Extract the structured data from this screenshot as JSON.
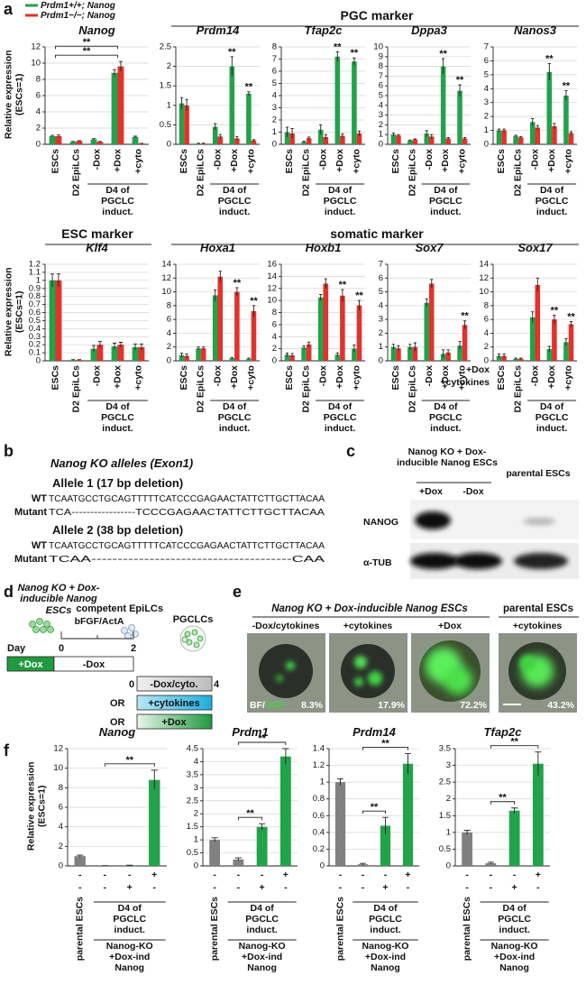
{
  "panel_letters": {
    "a": "a",
    "b": "b",
    "c": "c",
    "d": "d",
    "e": "e",
    "f": "f"
  },
  "legend": [
    {
      "name": "Prdm1+/+; Nanog",
      "color": "#22a34a"
    },
    {
      "name": "Prdm1−/−; Nanog",
      "color": "#e3322b"
    }
  ],
  "headers": {
    "pgc": "PGC marker",
    "esc": "ESC marker",
    "somatic": "somatic marker"
  },
  "chart_data": [
    {
      "type": "bar",
      "title": "Nanog",
      "ylabel": "Relative expression (ESCs=1)",
      "grid": true,
      "categories": [
        "ESCs",
        "D2 EpiLCs",
        "-Dox",
        "+Dox",
        "+cyto"
      ],
      "group_label": "D4 of PGCLC induct.",
      "ylim": [
        0,
        12
      ],
      "yticks": [
        0,
        2,
        4,
        6,
        8,
        10,
        12
      ],
      "series": [
        {
          "color": "#22a34a",
          "values": [
            1.0,
            0.3,
            0.6,
            8.8,
            0.9
          ],
          "errors": [
            0.1,
            0.05,
            0.1,
            0.4,
            0.1
          ]
        },
        {
          "color": "#e3322b",
          "values": [
            1.0,
            0.4,
            0.3,
            9.6,
            0.1
          ],
          "errors": [
            0.15,
            0.05,
            0.05,
            0.6,
            0.02
          ]
        }
      ],
      "brackets": [
        {
          "from": 0,
          "to": 3,
          "text": "**"
        },
        {
          "from": 0,
          "to": 3,
          "text": "**"
        }
      ]
    },
    {
      "type": "bar",
      "title": "Prdm14",
      "grid": true,
      "categories": [
        "ESCs",
        "D2 EpiLCs",
        "-Dox",
        "+Dox",
        "+cyto"
      ],
      "group_label": "D4 of PGCLC induct.",
      "ylim": [
        0,
        2.5
      ],
      "yticks": [
        0,
        0.5,
        1,
        1.5,
        2,
        2.5
      ],
      "series": [
        {
          "color": "#22a34a",
          "values": [
            1.05,
            0.02,
            0.45,
            2.0,
            1.3
          ],
          "errors": [
            0.15,
            0.01,
            0.08,
            0.25,
            0.05
          ]
        },
        {
          "color": "#e3322b",
          "values": [
            1.0,
            0.02,
            0.2,
            0.15,
            0.1
          ],
          "errors": [
            0.15,
            0.01,
            0.05,
            0.05,
            0.02
          ]
        }
      ],
      "annotations": [
        {
          "text": "**",
          "series": 0,
          "category": 3
        },
        {
          "text": "**",
          "series": 0,
          "category": 4
        }
      ]
    },
    {
      "type": "bar",
      "title": "Tfap2c",
      "grid": true,
      "categories": [
        "ESCs",
        "D2 EpiLCs",
        "-Dox",
        "+Dox",
        "+cyto"
      ],
      "group_label": "D4 of PGCLC induct.",
      "ylim": [
        0,
        8
      ],
      "yticks": [
        0,
        1,
        2,
        3,
        4,
        5,
        6,
        7,
        8
      ],
      "series": [
        {
          "color": "#22a34a",
          "values": [
            1.0,
            0.2,
            1.2,
            7.2,
            6.8
          ],
          "errors": [
            0.4,
            0.05,
            0.4,
            0.4,
            0.3
          ]
        },
        {
          "color": "#e3322b",
          "values": [
            0.9,
            0.5,
            0.6,
            0.7,
            0.9
          ],
          "errors": [
            0.4,
            0.1,
            0.2,
            0.15,
            0.2
          ]
        }
      ],
      "annotations": [
        {
          "text": "**",
          "series": 0,
          "category": 3
        },
        {
          "text": "**",
          "series": 0,
          "category": 4
        }
      ]
    },
    {
      "type": "bar",
      "title": "Dppa3",
      "grid": true,
      "categories": [
        "ESCs",
        "D2 EpiLCs",
        "-Dox",
        "+Dox",
        "+cyto"
      ],
      "group_label": "D4 of PGCLC induct.",
      "ylim": [
        0,
        10
      ],
      "yticks": [
        0,
        1,
        2,
        3,
        4,
        5,
        6,
        7,
        8,
        9,
        10
      ],
      "series": [
        {
          "color": "#22a34a",
          "values": [
            1.0,
            0.4,
            1.1,
            8.0,
            5.5
          ],
          "errors": [
            0.15,
            0.05,
            0.3,
            0.8,
            0.6
          ]
        },
        {
          "color": "#e3322b",
          "values": [
            0.9,
            0.5,
            0.8,
            0.6,
            0.6
          ],
          "errors": [
            0.1,
            0.05,
            0.2,
            0.1,
            0.1
          ]
        }
      ],
      "annotations": [
        {
          "text": "**",
          "series": 0,
          "category": 3
        },
        {
          "text": "**",
          "series": 0,
          "category": 4
        }
      ]
    },
    {
      "type": "bar",
      "title": "Nanos3",
      "grid": true,
      "categories": [
        "ESCs",
        "D2 EpiLCs",
        "-Dox",
        "+Dox",
        "+cyto"
      ],
      "group_label": "D4 of PGCLC induct.",
      "ylim": [
        0,
        7
      ],
      "yticks": [
        0,
        1,
        2,
        3,
        4,
        5,
        6,
        7
      ],
      "series": [
        {
          "color": "#22a34a",
          "values": [
            1.0,
            0.6,
            1.6,
            5.2,
            3.5
          ],
          "errors": [
            0.1,
            0.05,
            0.25,
            0.6,
            0.35
          ]
        },
        {
          "color": "#e3322b",
          "values": [
            1.0,
            0.5,
            1.2,
            1.3,
            0.8
          ],
          "errors": [
            0.1,
            0.05,
            0.15,
            0.2,
            0.1
          ]
        }
      ],
      "annotations": [
        {
          "text": "**",
          "series": 0,
          "category": 3
        },
        {
          "text": "**",
          "series": 0,
          "category": 4
        }
      ]
    },
    {
      "type": "bar",
      "title": "Klf4",
      "ylabel": "Relative expression (ESCs=1)",
      "grid": true,
      "categories": [
        "ESCs",
        "D2 EpiLCs",
        "-Dox",
        "+Dox",
        "+cyto"
      ],
      "group_label": "D4 of PGCLC induct.",
      "ylim": [
        0,
        1.2
      ],
      "yticks": [
        0,
        0.1,
        0.2,
        0.3,
        0.4,
        0.5,
        0.6,
        0.7,
        0.8,
        0.9,
        1,
        1.1,
        1.2
      ],
      "series": [
        {
          "color": "#22a34a",
          "values": [
            1.0,
            0.01,
            0.15,
            0.18,
            0.17
          ],
          "errors": [
            0.08,
            0.005,
            0.04,
            0.04,
            0.04
          ]
        },
        {
          "color": "#e3322b",
          "values": [
            1.0,
            0.01,
            0.2,
            0.2,
            0.17
          ],
          "errors": [
            0.08,
            0.005,
            0.04,
            0.03,
            0.04
          ]
        }
      ]
    },
    {
      "type": "bar",
      "title": "Hoxa1",
      "grid": true,
      "categories": [
        "ESCs",
        "D2 EpiLCs",
        "-Dox",
        "+Dox",
        "+cyto"
      ],
      "group_label": "D4 of PGCLC induct.",
      "ylim": [
        0,
        14
      ],
      "yticks": [
        0,
        2,
        4,
        6,
        8,
        10,
        12,
        14
      ],
      "series": [
        {
          "color": "#22a34a",
          "values": [
            0.8,
            1.8,
            9.5,
            0.4,
            0.3
          ],
          "errors": [
            0.3,
            0.2,
            0.8,
            0.1,
            0.1
          ]
        },
        {
          "color": "#e3322b",
          "values": [
            0.7,
            1.8,
            12.2,
            10.0,
            7.2
          ],
          "errors": [
            0.3,
            0.2,
            0.8,
            0.6,
            0.8
          ]
        }
      ],
      "annotations": [
        {
          "text": "**",
          "series": 1,
          "category": 3
        },
        {
          "text": "**",
          "series": 1,
          "category": 4
        }
      ]
    },
    {
      "type": "bar",
      "title": "Hoxb1",
      "grid": true,
      "categories": [
        "ESCs",
        "D2 EpiLCs",
        "-Dox",
        "+Dox",
        "+cyto"
      ],
      "group_label": "D4 of PGCLC induct.",
      "ylim": [
        0,
        16
      ],
      "yticks": [
        0,
        2,
        4,
        6,
        8,
        10,
        12,
        14,
        16
      ],
      "series": [
        {
          "color": "#22a34a",
          "values": [
            1.0,
            2.2,
            10.5,
            1.0,
            2.0
          ],
          "errors": [
            0.3,
            0.3,
            0.5,
            0.3,
            0.6
          ]
        },
        {
          "color": "#e3322b",
          "values": [
            0.9,
            2.7,
            12.8,
            10.8,
            9.2
          ],
          "errors": [
            0.3,
            0.4,
            0.8,
            1.0,
            0.8
          ]
        }
      ],
      "annotations": [
        {
          "text": "**",
          "series": 1,
          "category": 3
        },
        {
          "text": "**",
          "series": 1,
          "category": 4
        }
      ]
    },
    {
      "type": "bar",
      "title": "Sox7",
      "grid": true,
      "categories": [
        "ESCs",
        "D2 EpiLCs",
        "-Dox",
        "+Dox",
        "+cyto"
      ],
      "group_label": "D4 of PGCLC induct.",
      "ylim": [
        0,
        7
      ],
      "yticks": [
        0,
        1,
        2,
        3,
        4,
        5,
        6,
        7
      ],
      "series": [
        {
          "color": "#22a34a",
          "values": [
            1.0,
            1.0,
            4.2,
            0.5,
            1.1
          ],
          "errors": [
            0.2,
            0.2,
            0.3,
            0.3,
            0.3
          ]
        },
        {
          "color": "#e3322b",
          "values": [
            0.9,
            1.0,
            5.6,
            0.6,
            2.6
          ],
          "errors": [
            0.2,
            0.3,
            0.3,
            0.2,
            0.3
          ]
        }
      ],
      "annotations": [
        {
          "text": "**",
          "series": 1,
          "category": 4
        }
      ]
    },
    {
      "type": "bar",
      "title": "Sox17",
      "grid": true,
      "categories": [
        "ESCs",
        "D2 EpiLCs",
        "-Dox",
        "+Dox",
        "+cyto"
      ],
      "group_label": "D4 of PGCLC induct.",
      "ylim": [
        0,
        14
      ],
      "yticks": [
        0,
        2,
        4,
        6,
        8,
        10,
        12,
        14
      ],
      "series": [
        {
          "color": "#22a34a",
          "values": [
            0.7,
            0.3,
            6.3,
            1.7,
            2.7
          ],
          "errors": [
            0.3,
            0.1,
            0.8,
            0.4,
            0.5
          ]
        },
        {
          "color": "#e3322b",
          "values": [
            0.7,
            0.3,
            11.0,
            6.0,
            5.3
          ],
          "errors": [
            0.3,
            0.1,
            1.0,
            0.6,
            0.4
          ]
        }
      ],
      "annotations": [
        {
          "text": "**",
          "series": 1,
          "category": 3
        },
        {
          "text": "**",
          "series": 1,
          "category": 4
        }
      ]
    },
    {
      "type": "bar",
      "title": "Nanog",
      "ylabel": "Relative expression (ESCs=1)",
      "grid": true,
      "categories": [
        "parental ESCs",
        null,
        null,
        null
      ],
      "group_label": "D4 of PGCLC induct.",
      "subgroup_label": "Nanog-KO +Dox-ind Nanog",
      "ylim": [
        0,
        12
      ],
      "yticks": [
        0,
        2,
        4,
        6,
        8,
        10,
        12
      ],
      "values": [
        1.0,
        0.02,
        0.05,
        8.8
      ],
      "errors": [
        0.1,
        0.01,
        0.02,
        1.0
      ],
      "colors": [
        "#808080",
        "#808080",
        "#22a34a",
        "#22a34a"
      ],
      "conditions": [
        [
          "-",
          "-",
          "-",
          "+"
        ],
        [
          "-",
          "-",
          "+",
          "-"
        ]
      ],
      "brackets": [
        {
          "from": 1,
          "to": 3,
          "text": "**"
        }
      ]
    },
    {
      "type": "bar",
      "title": "Prdm1",
      "grid": true,
      "categories": [
        "parental ESCs",
        null,
        null,
        null
      ],
      "group_label": "D4 of PGCLC induct.",
      "subgroup_label": "Nanog-KO +Dox-ind Nanog",
      "ylim": [
        0,
        4.5
      ],
      "yticks": [
        0,
        0.5,
        1,
        1.5,
        2,
        2.5,
        3,
        3.5,
        4,
        4.5
      ],
      "values": [
        1.0,
        0.25,
        1.5,
        4.2
      ],
      "errors": [
        0.08,
        0.06,
        0.12,
        0.3
      ],
      "colors": [
        "#808080",
        "#808080",
        "#22a34a",
        "#22a34a"
      ],
      "conditions": [
        [
          "-",
          "-",
          "-",
          "+"
        ],
        [
          "-",
          "-",
          "+",
          "-"
        ]
      ],
      "brackets": [
        {
          "from": 1,
          "to": 2,
          "text": "**"
        },
        {
          "from": 1,
          "to": 3,
          "text": "**"
        }
      ]
    },
    {
      "type": "bar",
      "title": "Prdm14",
      "grid": true,
      "categories": [
        "parental ESCs",
        null,
        null,
        null
      ],
      "group_label": "D4 of PGCLC induct.",
      "subgroup_label": "Nanog-KO +Dox-ind Nanog",
      "ylim": [
        0,
        1.4
      ],
      "yticks": [
        0,
        0.2,
        0.4,
        0.6,
        0.8,
        1,
        1.2,
        1.4
      ],
      "values": [
        1.0,
        0.02,
        0.48,
        1.22
      ],
      "errors": [
        0.04,
        0.01,
        0.1,
        0.12
      ],
      "colors": [
        "#808080",
        "#808080",
        "#22a34a",
        "#22a34a"
      ],
      "conditions": [
        [
          "-",
          "-",
          "-",
          "+"
        ],
        [
          "-",
          "-",
          "+",
          "-"
        ]
      ],
      "brackets": [
        {
          "from": 1,
          "to": 2,
          "text": "**"
        },
        {
          "from": 1,
          "to": 3,
          "text": "**"
        }
      ]
    },
    {
      "type": "bar",
      "title": "Tfap2c",
      "grid": true,
      "categories": [
        "parental ESCs",
        null,
        null,
        null
      ],
      "group_label": "D4 of PGCLC induct.",
      "subgroup_label": "Nanog-KO +Dox-ind Nanog",
      "ylim": [
        0,
        3.5
      ],
      "yticks": [
        0,
        0.5,
        1,
        1.5,
        2,
        2.5,
        3,
        3.5
      ],
      "values": [
        1.0,
        0.08,
        1.65,
        3.05
      ],
      "errors": [
        0.06,
        0.03,
        0.08,
        0.35
      ],
      "colors": [
        "#808080",
        "#808080",
        "#22a34a",
        "#22a34a"
      ],
      "conditions": [
        [
          "-",
          "-",
          "-",
          "+"
        ],
        [
          "-",
          "-",
          "+",
          "-"
        ]
      ],
      "brackets": [
        {
          "from": 1,
          "to": 2,
          "text": "**"
        },
        {
          "from": 1,
          "to": 3,
          "text": "**"
        }
      ]
    }
  ],
  "f_conditions": [
    "+Dox",
    "+cytokines"
  ],
  "panel_b": {
    "title": "Nanog KO alleles (Exon1)",
    "alleles": [
      {
        "label": "Allele 1 (17 bp deletion)",
        "wt_label": "WT",
        "wt": "TCAATGCCTGCAGTTTTTCATCCCGAGAACTATTCTTGCTTACAA",
        "mut_label": "Mutant",
        "mut": "TCA-----------------TCCCGAGAACTATTCTTGCTTACAA"
      },
      {
        "label": "Allele 2 (38 bp deletion)",
        "wt_label": "WT",
        "wt": "TCAATGCCTGCAGTTTTTCATCCCGAGAACTATTCTTGCTTACAA",
        "mut_label": "Mutant",
        "mut": "TCAA--------------------------------------CAA"
      }
    ]
  },
  "panel_c": {
    "header": "Nanog KO + Dox-inducible Nanog ESCs",
    "parental": "parental ESCs",
    "lanes": [
      "+Dox",
      "-Dox"
    ],
    "rows": [
      "NANOG",
      "α-TUB"
    ]
  },
  "panel_d": {
    "cells": "Nanog KO + Dox-inducible Nanog ESCs",
    "epilc": "competent EpiLCs",
    "pgclc": "PGCLCs",
    "factor": "bFGF/ActA",
    "day": "Day",
    "day0": "0",
    "day2": "2",
    "day0b": "0",
    "day4": "4",
    "dox": "+Dox",
    "nodox": "-Dox",
    "nodoxcyto": "-Dox/cyto.",
    "or1": "OR",
    "cyto": "+cytokines",
    "or2": "OR",
    "dox2": "+Dox"
  },
  "panel_e": {
    "header": "Nanog KO + Dox-inducible Nanog ESCs",
    "parental": "parental ESCs",
    "conditions": [
      "-Dox/cytokines",
      "+cytokines",
      "+Dox",
      "+cytokines"
    ],
    "percent": [
      "8.3%",
      "17.9%",
      "72.2%",
      "43.2%"
    ],
    "overlay": [
      "BF/",
      "GFP"
    ]
  }
}
